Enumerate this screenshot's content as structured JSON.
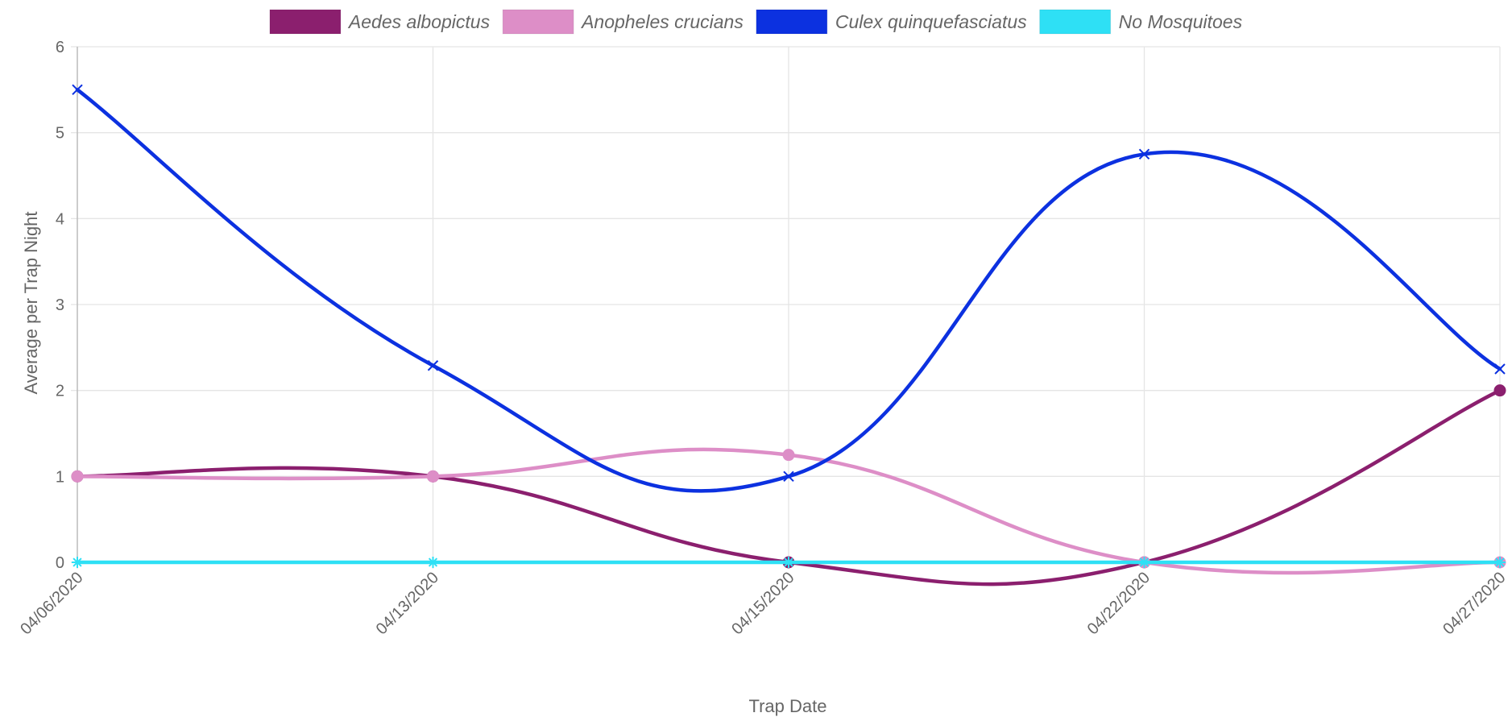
{
  "chart_data": {
    "type": "line",
    "title": "",
    "xlabel": "Trap Date",
    "ylabel": "Average per Trap Night",
    "categories": [
      "04/06/2020",
      "04/13/2020",
      "04/15/2020",
      "04/22/2020",
      "04/27/2020"
    ],
    "ylim": [
      0,
      6
    ],
    "yticks": [
      0,
      1,
      2,
      3,
      4,
      5,
      6
    ],
    "grid": true,
    "legend_position": "top",
    "series": [
      {
        "name": "Aedes albopictus",
        "values": [
          1,
          1,
          0,
          0,
          2
        ],
        "color": "#8b1f6e",
        "marker": "circle"
      },
      {
        "name": "Anopheles crucians",
        "values": [
          1,
          1,
          1.25,
          0,
          0
        ],
        "color": "#dd8ec7",
        "marker": "circle"
      },
      {
        "name": "Culex quinquefasciatus",
        "values": [
          5.5,
          2.29,
          1,
          4.75,
          2.25
        ],
        "color": "#0c31e0",
        "marker": "cross"
      },
      {
        "name": "No Mosquitoes",
        "values": [
          0,
          0,
          0,
          0,
          0
        ],
        "color": "#2ee0f5",
        "marker": "star"
      }
    ]
  }
}
